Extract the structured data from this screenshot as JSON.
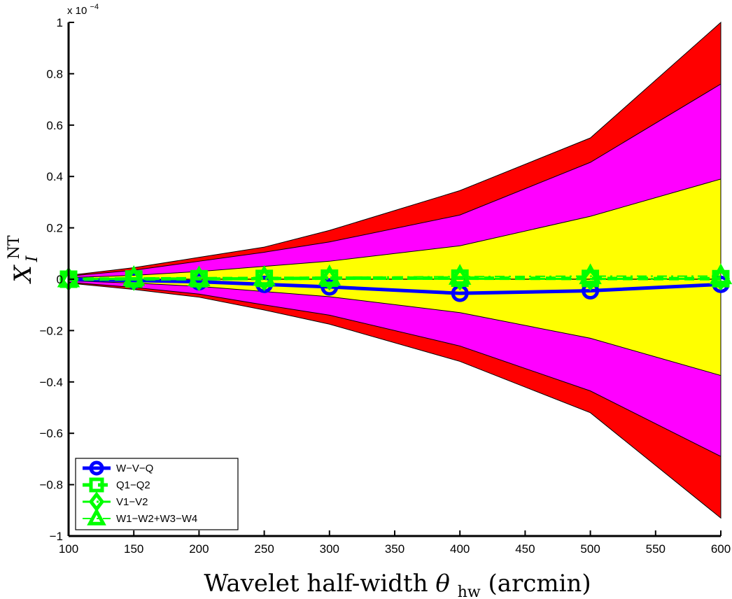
{
  "chart_data": {
    "type": "line",
    "x": [
      100,
      150,
      200,
      250,
      300,
      400,
      500,
      600
    ],
    "xlabel_main": "Wavelet half-width ",
    "xlabel_symbol": "θ",
    "xlabel_sub": "hw",
    "xlabel_unit": " (arcmin)",
    "ylabel_main": "X",
    "ylabel_sub": "I",
    "ylabel_sup": "NT",
    "y_exponent_prefix": "x 10",
    "y_exponent_power": "−4",
    "xlim": [
      100,
      600
    ],
    "ylim": [
      -1,
      1
    ],
    "y_scale": 0.0001,
    "xticks": [
      100,
      150,
      200,
      250,
      300,
      350,
      400,
      450,
      500,
      550,
      600
    ],
    "yticks": [
      1,
      0.8,
      0.6,
      0.4,
      0.2,
      0,
      -0.2,
      -0.4,
      -0.6,
      -0.8,
      -1
    ],
    "ytick_labels": [
      "1",
      "0.8",
      "0.6",
      "0.4",
      "0.2",
      "0",
      "−0.2",
      "−0.4",
      "−0.6",
      "−0.8",
      "−1"
    ],
    "xtick_labels": [
      "100",
      "150",
      "200",
      "250",
      "300",
      "350",
      "400",
      "450",
      "500",
      "550",
      "600"
    ],
    "bands": [
      {
        "color": "#ff0000",
        "upper": [
          0.015,
          0.045,
          0.085,
          0.125,
          0.19,
          0.345,
          0.55,
          1.0
        ],
        "lower": [
          -0.015,
          -0.04,
          -0.07,
          -0.12,
          -0.175,
          -0.32,
          -0.52,
          -0.93
        ]
      },
      {
        "color": "#ff00ff",
        "upper": [
          0.012,
          0.035,
          0.07,
          0.105,
          0.145,
          0.25,
          0.455,
          0.76
        ],
        "lower": [
          -0.012,
          -0.032,
          -0.058,
          -0.1,
          -0.14,
          -0.26,
          -0.435,
          -0.69
        ]
      },
      {
        "color": "#ffff00",
        "upper": [
          0.006,
          0.015,
          0.03,
          0.05,
          0.07,
          0.13,
          0.245,
          0.39
        ],
        "lower": [
          -0.006,
          -0.015,
          -0.028,
          -0.048,
          -0.068,
          -0.13,
          -0.23,
          -0.375
        ]
      }
    ],
    "series": [
      {
        "name": "W−V−Q",
        "color": "#0000ff",
        "marker": "circle",
        "dash": "solid",
        "width": 5,
        "values": [
          0.0,
          -0.005,
          -0.01,
          -0.02,
          -0.03,
          -0.055,
          -0.045,
          -0.02
        ]
      },
      {
        "name": "Q1−Q2",
        "color": "#00ff00",
        "marker": "square",
        "dash": "dashed",
        "width": 5,
        "values": [
          0.0,
          0.001,
          0.002,
          0.003,
          0.004,
          0.004,
          0.003,
          0.002
        ]
      },
      {
        "name": "V1−V2",
        "color": "#00ff00",
        "marker": "diamond",
        "dash": "dashdot",
        "width": 3,
        "values": [
          0.0,
          0.001,
          0.0,
          0.0,
          0.002,
          0.002,
          0.001,
          0.002
        ]
      },
      {
        "name": "W1−W2+W3−W4",
        "color": "#00ff00",
        "marker": "triangle",
        "dash": "dashdot",
        "width": 2,
        "values": [
          0.0,
          0.005,
          0.004,
          0.006,
          0.008,
          0.01,
          0.012,
          0.012
        ]
      }
    ],
    "legend_position": "bottom-left",
    "grid": false
  }
}
